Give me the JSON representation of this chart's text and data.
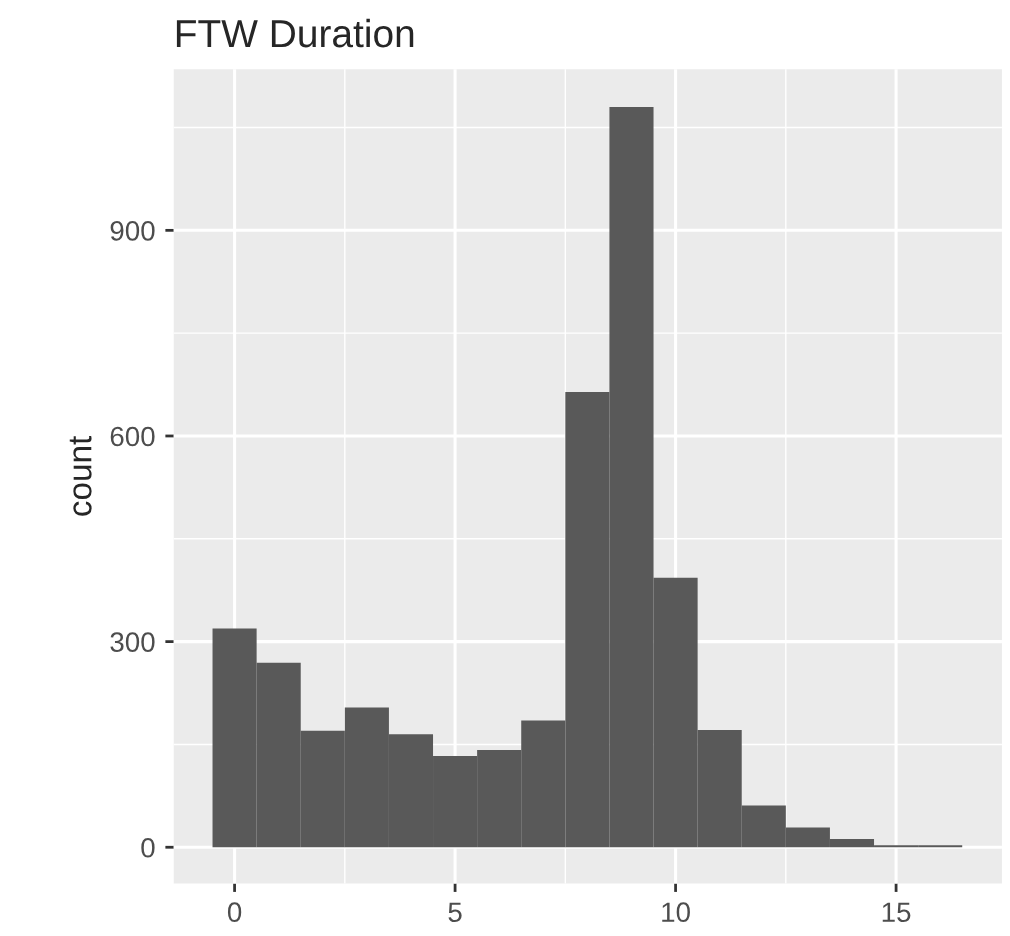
{
  "chart_data": {
    "type": "histogram",
    "title": "FTW Duration",
    "ylabel": "count",
    "bins": [
      -0.5,
      0.5,
      1.5,
      2.5,
      3.5,
      4.5,
      5.5,
      6.5,
      7.5,
      8.5,
      9.5,
      10.5,
      11.5,
      12.5,
      13.5,
      14.5,
      15.5,
      16.5
    ],
    "values": [
      319,
      269,
      170,
      204,
      165,
      133,
      142,
      185,
      664,
      1080,
      393,
      171,
      61,
      29,
      12,
      3,
      3
    ],
    "color": "#595959",
    "xlim": [
      -1.38,
      17.4
    ],
    "xticks": [
      0,
      5,
      10,
      15
    ],
    "ylim": [
      -53,
      1135
    ],
    "yticks": [
      0,
      300,
      600,
      900
    ],
    "grid": true
  }
}
